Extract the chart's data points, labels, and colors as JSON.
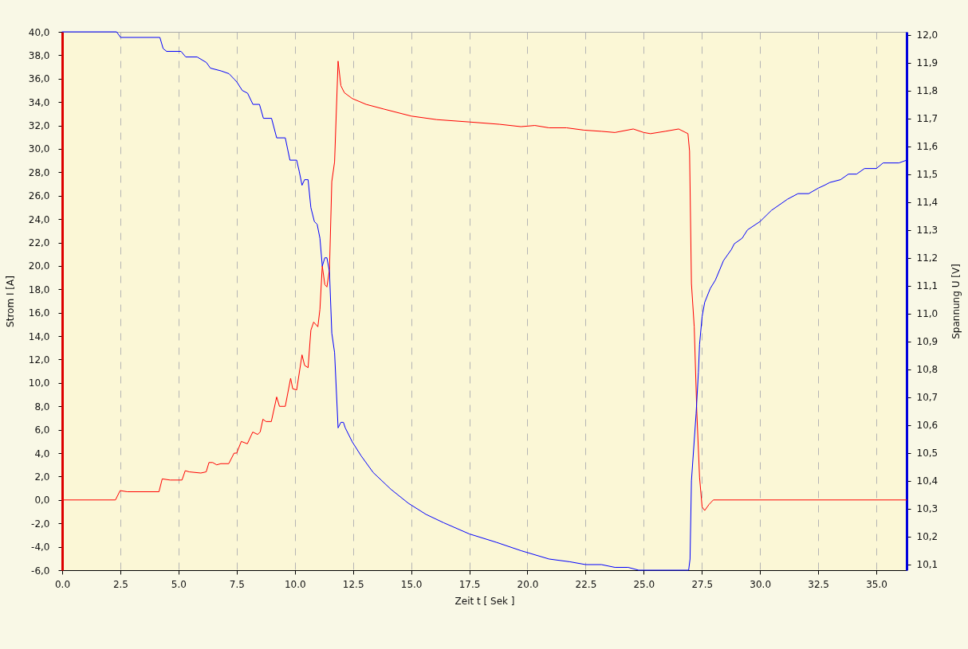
{
  "chart_data": {
    "type": "line",
    "xlabel": "Zeit t [ Sek ]",
    "ylabel": "Strom I [A]",
    "y2label": "Spannung U [V]",
    "xlim": [
      0,
      36.3
    ],
    "xticks": [
      {
        "value": 0,
        "label": "0.0"
      },
      2.5,
      {
        "value": 5,
        "label": "5.0"
      },
      7.5,
      {
        "value": 10,
        "label": "10.0"
      },
      12.5,
      {
        "value": 15,
        "label": "15.0"
      },
      17.5,
      {
        "value": 20,
        "label": "20.0"
      },
      22.5,
      {
        "value": 25,
        "label": "25.0"
      },
      27.5,
      {
        "value": 30,
        "label": "30.0"
      },
      32.5,
      {
        "value": 35,
        "label": "35.0"
      }
    ],
    "ylim": [
      -6,
      40
    ],
    "yticks": [
      {
        "value": -6,
        "label": "-6,0"
      },
      {
        "value": -4,
        "label": "-4,0"
      },
      {
        "value": -2,
        "label": "-2,0"
      },
      {
        "value": 0,
        "label": "0,0"
      },
      {
        "value": 2,
        "label": "2,0"
      },
      {
        "value": 4,
        "label": "4,0"
      },
      {
        "value": 6,
        "label": "6,0"
      },
      {
        "value": 8,
        "label": "8,0"
      },
      {
        "value": 10,
        "label": "10,0"
      },
      {
        "value": 12,
        "label": "12,0"
      },
      {
        "value": 14,
        "label": "14,0"
      },
      {
        "value": 16,
        "label": "16,0"
      },
      {
        "value": 18,
        "label": "18,0"
      },
      {
        "value": 20,
        "label": "20,0"
      },
      {
        "value": 22,
        "label": "22,0"
      },
      {
        "value": 24,
        "label": "24,0"
      },
      {
        "value": 26,
        "label": "26,0"
      },
      {
        "value": 28,
        "label": "28,0"
      },
      {
        "value": 30,
        "label": "30,0"
      },
      {
        "value": 32,
        "label": "32,0"
      },
      {
        "value": 34,
        "label": "34,0"
      },
      {
        "value": 36,
        "label": "36,0"
      },
      {
        "value": 38,
        "label": "38,0"
      },
      {
        "value": 40,
        "label": "40,0"
      }
    ],
    "y2lim": [
      10.08,
      12.01
    ],
    "y2ticks": [
      {
        "value": 10.1,
        "label": "10,1"
      },
      {
        "value": 10.2,
        "label": "10,2"
      },
      {
        "value": 10.3,
        "label": "10,3"
      },
      {
        "value": 10.4,
        "label": "10,4"
      },
      {
        "value": 10.5,
        "label": "10,5"
      },
      {
        "value": 10.6,
        "label": "10,6"
      },
      {
        "value": 10.7,
        "label": "10,7"
      },
      {
        "value": 10.8,
        "label": "10,8"
      },
      {
        "value": 10.9,
        "label": "10,9"
      },
      {
        "value": 11.0,
        "label": "11,0"
      },
      {
        "value": 11.1,
        "label": "11,1"
      },
      {
        "value": 11.2,
        "label": "11,2"
      },
      {
        "value": 11.3,
        "label": "11,3"
      },
      {
        "value": 11.4,
        "label": "11,4"
      },
      {
        "value": 11.5,
        "label": "11,5"
      },
      {
        "value": 11.6,
        "label": "11,6"
      },
      {
        "value": 11.7,
        "label": "11,7"
      },
      {
        "value": 11.8,
        "label": "11,8"
      },
      {
        "value": 11.9,
        "label": "11,9"
      },
      {
        "value": 12.0,
        "label": "12,0"
      }
    ],
    "grid": "x",
    "series": [
      {
        "color": "#ff0000",
        "x": [
          0,
          2.29,
          2.49,
          2.8,
          4.16,
          4.3,
          4.64,
          5.15,
          5.29,
          5.46,
          5.96,
          6.19,
          6.31,
          6.47,
          6.64,
          6.82,
          7.16,
          7.39,
          7.5,
          7.7,
          7.96,
          8.19,
          8.4,
          8.51,
          8.63,
          8.76,
          8.99,
          9.22,
          9.34,
          9.59,
          9.82,
          9.91,
          10.08,
          10.31,
          10.42,
          10.57,
          10.69,
          10.81,
          10.99,
          11.08,
          11.18,
          11.29,
          11.38,
          11.49,
          11.59,
          11.71,
          11.86,
          11.98,
          12.13,
          12.47,
          13.07,
          13.83,
          15.01,
          16.1,
          17.5,
          18.81,
          19.72,
          20.32,
          20.93,
          21.68,
          22.44,
          23.18,
          23.76,
          24.55,
          25.0,
          25.29,
          25.92,
          26.5,
          26.9,
          26.97,
          27.05,
          27.17,
          27.28,
          27.4,
          27.51,
          27.62,
          27.8,
          27.99,
          36.3
        ],
        "values": [
          0,
          0,
          0.8,
          0.7,
          0.7,
          1.8,
          1.7,
          1.7,
          2.5,
          2.4,
          2.3,
          2.4,
          3.2,
          3.2,
          3.0,
          3.1,
          3.1,
          4.0,
          4.0,
          5.0,
          4.8,
          5.8,
          5.6,
          5.8,
          6.9,
          6.7,
          6.7,
          8.8,
          8.0,
          8.0,
          10.4,
          9.5,
          9.4,
          12.4,
          11.5,
          11.3,
          14.5,
          15.2,
          14.8,
          16.3,
          20.0,
          18.4,
          18.2,
          19.7,
          27.2,
          28.9,
          37.5,
          35.4,
          34.8,
          34.3,
          33.8,
          33.4,
          32.8,
          32.5,
          32.3,
          32.1,
          31.9,
          32.0,
          31.8,
          31.8,
          31.6,
          31.5,
          31.4,
          31.7,
          31.4,
          31.3,
          31.5,
          31.7,
          31.3,
          29.8,
          18.5,
          14.8,
          7.6,
          1.9,
          -0.6,
          -0.9,
          -0.4,
          0,
          0
        ]
      },
      {
        "color": "#0000ff",
        "axis": "y2",
        "x": [
          0,
          2.34,
          2.51,
          4.2,
          4.34,
          4.49,
          5.11,
          5.31,
          5.8,
          6.2,
          6.37,
          6.83,
          7.17,
          7.4,
          7.51,
          7.74,
          7.97,
          8.2,
          8.48,
          8.65,
          9.0,
          9.22,
          9.59,
          9.79,
          10.08,
          10.19,
          10.31,
          10.42,
          10.57,
          10.69,
          10.84,
          10.96,
          11.08,
          11.18,
          11.29,
          11.38,
          11.49,
          11.59,
          11.71,
          11.86,
          11.98,
          12.09,
          12.17,
          12.47,
          12.85,
          13.37,
          14.13,
          14.88,
          15.64,
          16.4,
          17.5,
          18.66,
          19.72,
          20.93,
          21.83,
          22.5,
          23.18,
          23.76,
          24.33,
          24.78,
          25.0,
          26.93,
          26.99,
          27.05,
          27.25,
          27.35,
          27.4,
          27.51,
          27.62,
          27.86,
          28.08,
          28.43,
          28.77,
          28.89,
          29.23,
          29.46,
          30.0,
          30.49,
          31.18,
          31.63,
          32.09,
          32.51,
          32.77,
          33.0,
          33.46,
          33.8,
          34.15,
          34.49,
          35.0,
          35.29,
          35.97,
          36.3
        ],
        "values": [
          12.01,
          12.01,
          11.99,
          11.99,
          11.95,
          11.94,
          11.94,
          11.92,
          11.92,
          11.9,
          11.88,
          11.87,
          11.86,
          11.84,
          11.83,
          11.8,
          11.79,
          11.75,
          11.75,
          11.7,
          11.7,
          11.63,
          11.63,
          11.55,
          11.55,
          11.51,
          11.46,
          11.48,
          11.48,
          11.38,
          11.33,
          11.32,
          11.27,
          11.17,
          11.2,
          11.2,
          11.15,
          10.93,
          10.86,
          10.59,
          10.61,
          10.61,
          10.59,
          10.54,
          10.49,
          10.43,
          10.37,
          10.32,
          10.28,
          10.25,
          10.21,
          10.18,
          10.15,
          10.12,
          10.11,
          10.1,
          10.1,
          10.09,
          10.09,
          10.08,
          10.08,
          10.08,
          10.12,
          10.4,
          10.64,
          10.79,
          10.89,
          10.99,
          11.04,
          11.09,
          11.12,
          11.19,
          11.23,
          11.25,
          11.27,
          11.3,
          11.33,
          11.37,
          11.41,
          11.43,
          11.43,
          11.45,
          11.46,
          11.47,
          11.48,
          11.5,
          11.5,
          11.52,
          11.52,
          11.54,
          11.54,
          11.55
        ]
      }
    ]
  }
}
